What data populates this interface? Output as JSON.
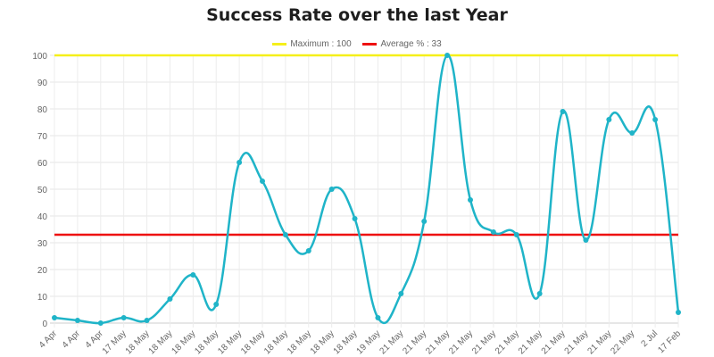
{
  "chart_data": {
    "type": "line",
    "title": "Success Rate over the last Year",
    "categories": [
      "4 Apr",
      "4 Apr",
      "4 Apr",
      "17 May",
      "18 May",
      "18 May",
      "18 May",
      "18 May",
      "18 May",
      "18 May",
      "18 May",
      "18 May",
      "18 May",
      "18 May",
      "19 May",
      "21 May",
      "21 May",
      "21 May",
      "21 May",
      "21 May",
      "21 May",
      "21 May",
      "21 May",
      "21 May",
      "21 May",
      "22 May",
      "2 Jul",
      "17 Feb"
    ],
    "series": [
      {
        "values": [
          2,
          1,
          0,
          2,
          1,
          9,
          18,
          7,
          60,
          53,
          33,
          27,
          50,
          39,
          2,
          11,
          38,
          100,
          46,
          34,
          33,
          11,
          79,
          31,
          76,
          71,
          76,
          4
        ],
        "color": "#1fb4c8"
      }
    ],
    "reference_lines": [
      {
        "name": "Maximum : 100",
        "value": 100,
        "color": "#f5ef1a"
      },
      {
        "name": "Average % : 33",
        "value": 33,
        "color": "#ee1111"
      }
    ],
    "ylim": [
      0,
      100
    ],
    "yticks": [
      0,
      10,
      20,
      30,
      40,
      50,
      60,
      70,
      80,
      90,
      100
    ],
    "grid": true,
    "legend_position": "top"
  }
}
